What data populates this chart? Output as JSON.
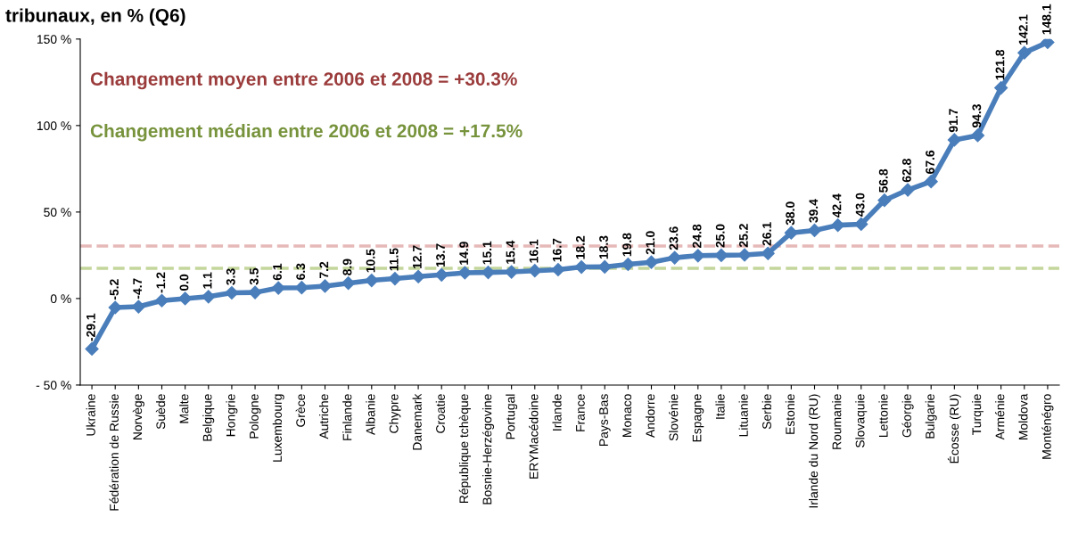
{
  "chart_data": {
    "type": "line",
    "title": "tribunaux, en % (Q6)",
    "categories": [
      "Ukraine",
      "Fédération de Russie",
      "Norvège",
      "Suède",
      "Malte",
      "Belgique",
      "Hongrie",
      "Pologne",
      "Luxembourg",
      "Grèce",
      "Autriche",
      "Finlande",
      "Albanie",
      "Chypre",
      "Danemark",
      "Croatie",
      "République tchèque",
      "Bosnie-Herzégovine",
      "Portugal",
      "ERYMacédoine",
      "Irlande",
      "France",
      "Pays-Bas",
      "Monaco",
      "Andorre",
      "Slovénie",
      "Espagne",
      "Italie",
      "Lituanie",
      "Serbie",
      "Estonie",
      "Irlande du Nord (RU)",
      "Roumanie",
      "Slovaquie",
      "Lettonie",
      "Géorgie",
      "Bulgarie",
      "Écosse (RU)",
      "Turquie",
      "Arménie",
      "Moldova",
      "Monténégro"
    ],
    "series": [
      {
        "color": "#4a7ebb",
        "values": [
          -29.1,
          -5.2,
          -4.7,
          -1.2,
          0.0,
          1.1,
          3.3,
          3.5,
          6.1,
          6.3,
          7.2,
          8.9,
          10.5,
          11.5,
          12.7,
          13.7,
          14.9,
          15.1,
          15.4,
          16.1,
          16.7,
          18.2,
          18.3,
          19.8,
          21.0,
          23.6,
          24.8,
          25.0,
          25.2,
          26.1,
          38.0,
          39.4,
          42.4,
          43.0,
          56.8,
          62.8,
          67.6,
          91.7,
          94.3,
          121.8,
          142.1,
          148.1
        ]
      }
    ],
    "value_labels": [
      "-29.1",
      "-5.2",
      "-4.7",
      "-1.2",
      "0.0",
      "1.1",
      "3.3",
      "3.5",
      "6.1",
      "6.3",
      "7.2",
      "8.9",
      "10.5",
      "11.5",
      "12.7",
      "13.7",
      "14.9",
      "15.1",
      "15.4",
      "16.1",
      "16.7",
      "18.2",
      "18.3",
      "19.8",
      "21.0",
      "23.6",
      "24.8",
      "25.0",
      "25.2",
      "26.1",
      "38.0",
      "39.4",
      "42.4",
      "43.0",
      "56.8",
      "62.8",
      "67.6",
      "91.7",
      "94.3",
      "121.8",
      "142.1",
      "148.1"
    ],
    "ylim": [
      -50,
      150
    ],
    "yticks": [
      {
        "value": -50,
        "label": "- 50 %"
      },
      {
        "value": 0,
        "label": "0 %"
      },
      {
        "value": 50,
        "label": "50 %"
      },
      {
        "value": 100,
        "label": "100 %"
      },
      {
        "value": 150,
        "label": "150 %"
      }
    ],
    "ref_lines": [
      {
        "axis": "y",
        "value": 30.3,
        "color": "#e6b9b8",
        "line_style": "dashed"
      },
      {
        "axis": "y",
        "value": 17.5,
        "color": "#c3d69b",
        "line_style": "dashed"
      }
    ],
    "annotations": [
      "Changement moyen entre 2006 et 2008 = +30.3%",
      "Changement médian entre 2006 et 2008 = +17.5%"
    ],
    "marker": "diamond",
    "line_style": "solid",
    "grid": false,
    "legend": false
  }
}
